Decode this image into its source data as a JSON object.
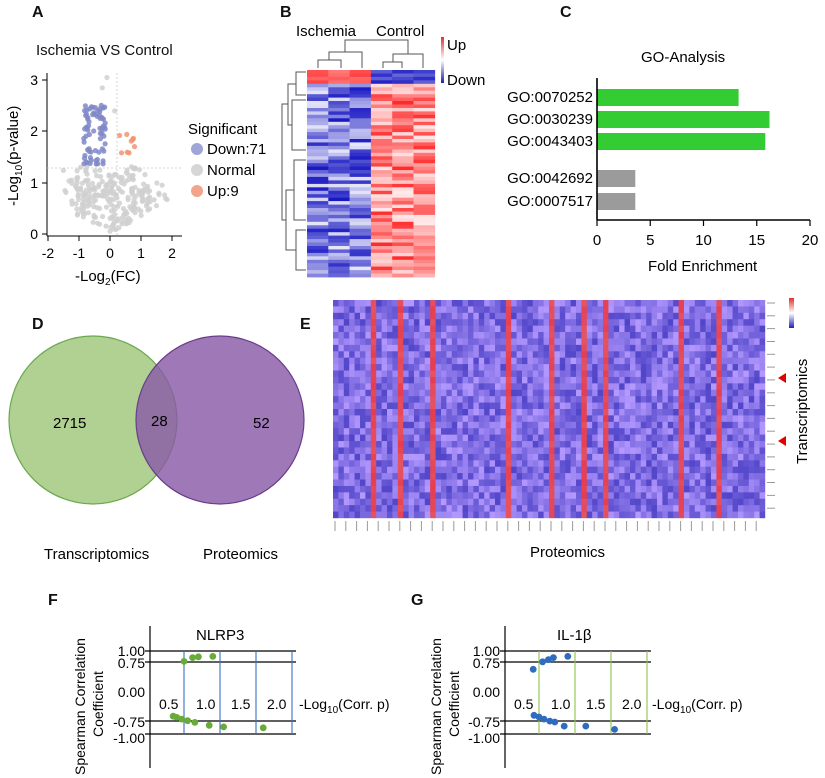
{
  "panels": {
    "A": {
      "label": "A",
      "title": "Ischemia VS Control",
      "xlabel_pre": "-Log",
      "xlabel_sub": "2",
      "xlabel_post": "(FC)",
      "ylabel_pre": "-Log",
      "ylabel_sub": "10",
      "ylabel_post": "(p-value)",
      "legend_title": "Significant",
      "legend": [
        {
          "label": "Down:71",
          "color": "#9fa5d6"
        },
        {
          "label": "Normal",
          "color": "#d6d6d6"
        },
        {
          "label": "Up:9",
          "color": "#f1a58b"
        }
      ],
      "xticks": [
        "-2",
        "-1",
        "0",
        "1",
        "2"
      ],
      "yticks": [
        "0",
        "1",
        "2",
        "3"
      ]
    },
    "B": {
      "label": "B",
      "group1": "Ischemia",
      "group2": "Control",
      "scale_up": "Up",
      "scale_down": "Down"
    },
    "C": {
      "label": "C",
      "title": "GO-Analysis",
      "xlabel": "Fold  Enrichment",
      "xticks": [
        "0",
        "5",
        "10",
        "15",
        "20"
      ]
    },
    "D": {
      "label": "D",
      "left_name": "Transcriptomics",
      "right_name": "Proteomics",
      "left_only": "2715",
      "overlap": "28",
      "right_only": "52"
    },
    "E": {
      "label": "E",
      "xlabel": "Proteomics",
      "ylabel": "Transcriptomics"
    },
    "F": {
      "label": "F",
      "title": "NLRP3",
      "ylabel1": "Spearman Correlation",
      "ylabel2": "Coefficient",
      "xlabel_pre": "-Log",
      "xlabel_sub": "10",
      "xlabel_post": "(Corr. p)",
      "yticks": [
        "1.00",
        "0.75",
        "0.00",
        "-0.75",
        "-1.00"
      ],
      "xticks": [
        "0.5",
        "1.0",
        "1.5",
        "2.0"
      ]
    },
    "G": {
      "label": "G",
      "title": "IL-1β",
      "ylabel1": "Spearman Correlation",
      "ylabel2": "Coefficient",
      "xlabel_pre": "-Log",
      "xlabel_sub": "10",
      "xlabel_post": "(Corr. p)",
      "yticks": [
        "1.00",
        "0.75",
        "0.00",
        "-0.75",
        "-1.00"
      ],
      "xticks": [
        "0.5",
        "1.0",
        "1.5",
        "2.0"
      ]
    }
  },
  "chart_data": [
    {
      "type": "bar",
      "orientation": "horizontal",
      "title": "GO-Analysis",
      "xlabel": "Fold  Enrichment",
      "xlim": [
        0,
        20
      ],
      "categories": [
        "GO:0070252",
        "GO:0030239",
        "GO:0043403",
        "GO:0042692",
        "GO:0007517"
      ],
      "values": [
        13.3,
        16.2,
        15.8,
        3.6,
        3.6
      ],
      "colors": [
        "#33cc33",
        "#33cc33",
        "#33cc33",
        "#9b9b9b",
        "#9b9b9b"
      ]
    },
    {
      "type": "scatter",
      "title": "NLRP3",
      "xlim": [
        0.35,
        2.35
      ],
      "ylim": [
        -1.1,
        1.1
      ],
      "color": "#6aaa3a",
      "points": [
        {
          "x": 1.0,
          "y": 0.75
        },
        {
          "x": 1.12,
          "y": 0.84
        },
        {
          "x": 1.2,
          "y": 0.86
        },
        {
          "x": 1.4,
          "y": 0.87
        },
        {
          "x": 0.85,
          "y": -0.57
        },
        {
          "x": 0.9,
          "y": -0.6
        },
        {
          "x": 0.97,
          "y": -0.64
        },
        {
          "x": 1.05,
          "y": -0.68
        },
        {
          "x": 1.15,
          "y": -0.72
        },
        {
          "x": 1.35,
          "y": -0.79
        },
        {
          "x": 1.55,
          "y": -0.83
        },
        {
          "x": 2.1,
          "y": -0.85
        }
      ]
    },
    {
      "type": "scatter",
      "title": "IL-1β",
      "xlim": [
        0.35,
        2.35
      ],
      "ylim": [
        -1.1,
        1.1
      ],
      "color": "#2f6bbf",
      "points": [
        {
          "x": 0.92,
          "y": 0.56
        },
        {
          "x": 1.05,
          "y": 0.74
        },
        {
          "x": 1.13,
          "y": 0.79
        },
        {
          "x": 1.2,
          "y": 0.84
        },
        {
          "x": 1.4,
          "y": 0.87
        },
        {
          "x": 0.93,
          "y": -0.55
        },
        {
          "x": 1.0,
          "y": -0.59
        },
        {
          "x": 1.07,
          "y": -0.64
        },
        {
          "x": 1.15,
          "y": -0.69
        },
        {
          "x": 1.22,
          "y": -0.71
        },
        {
          "x": 1.35,
          "y": -0.81
        },
        {
          "x": 1.65,
          "y": -0.81
        },
        {
          "x": 2.05,
          "y": -0.89
        }
      ]
    }
  ]
}
